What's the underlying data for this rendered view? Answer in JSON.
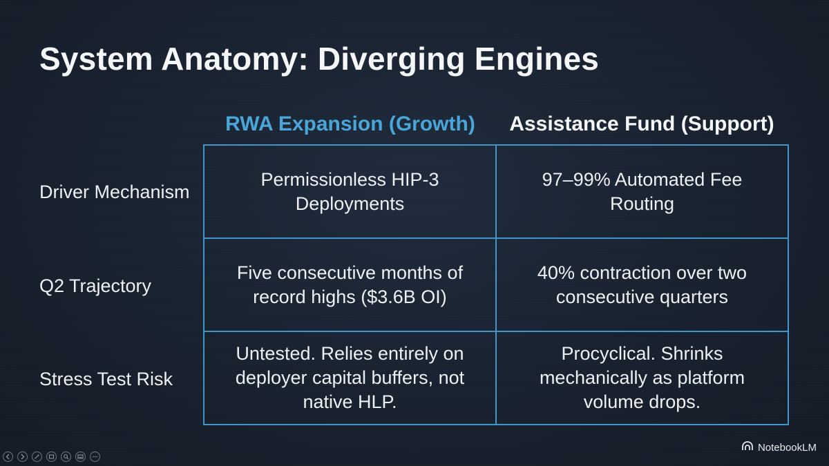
{
  "slide": {
    "title": "System Anatomy: Diverging Engines",
    "columns": [
      {
        "label": "RWA Expansion (Growth)",
        "color": "#4aa6d8"
      },
      {
        "label": "Assistance Fund (Support)",
        "color": "#f4f6f8"
      }
    ],
    "rows": [
      {
        "label": "Driver Mechanism",
        "cells": [
          "Permissionless HIP-3 Deployments",
          "97–99% Automated Fee Routing"
        ]
      },
      {
        "label": "Q2 Trajectory",
        "cells": [
          "Five consecutive months of record highs ($3.6B OI)",
          "40% contraction over two consecutive quarters"
        ]
      },
      {
        "label": "Stress Test Risk",
        "cells": [
          "Untested. Relies entirely on deployer capital buffers, not native HLP.",
          "Procyclical. Shrinks mechanically as platform volume drops."
        ]
      }
    ],
    "border_color": "#3f97cc",
    "background_color": "#18212e"
  },
  "branding": {
    "name": "NotebookLM",
    "icon": "notebooklm-logo-icon"
  },
  "controls": [
    {
      "icon": "previous-icon"
    },
    {
      "icon": "next-icon"
    },
    {
      "icon": "pen-icon"
    },
    {
      "icon": "slides-icon"
    },
    {
      "icon": "zoom-icon"
    },
    {
      "icon": "captions-icon"
    },
    {
      "icon": "more-icon"
    }
  ]
}
